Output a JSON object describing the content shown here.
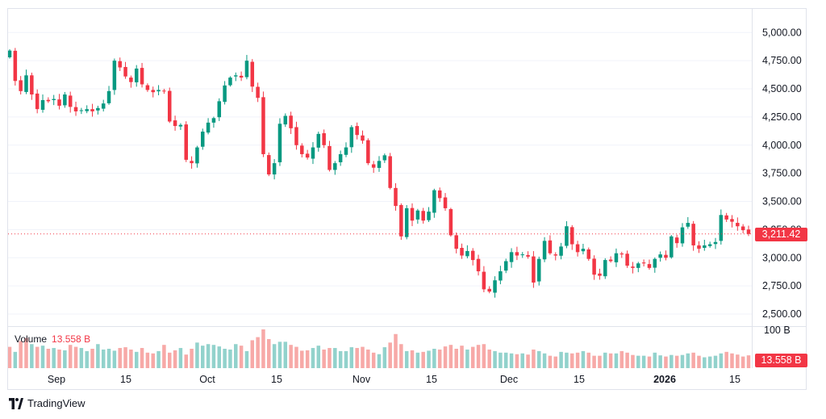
{
  "chart_data": {
    "type": "candlestick",
    "y_axis": {
      "ticks": [
        "5,000.00",
        "4,750.00",
        "4,500.00",
        "4,250.00",
        "4,000.00",
        "3,750.00",
        "3,500.00",
        "3,250.00",
        "3,000.00",
        "2,750.00",
        "2,500.00"
      ],
      "tick_values": [
        5000,
        4750,
        4500,
        4250,
        4000,
        3750,
        3500,
        3250,
        3000,
        2750,
        2500
      ],
      "range": [
        2400,
        5210
      ]
    },
    "x_axis": {
      "ticks": [
        "Sep",
        "15",
        "Oct",
        "15",
        "Nov",
        "15",
        "Dec",
        "15",
        "2026",
        "15"
      ],
      "bold_ticks": [
        "2026"
      ]
    },
    "last_price": 3211.42,
    "last_price_label": "3,211.42",
    "closes": [
      4840,
      4570,
      4480,
      4620,
      4450,
      4320,
      4400,
      4390,
      4410,
      4350,
      4450,
      4340,
      4300,
      4310,
      4320,
      4300,
      4330,
      4370,
      4480,
      4750,
      4690,
      4610,
      4560,
      4680,
      4540,
      4490,
      4470,
      4490,
      4480,
      4210,
      4170,
      4180,
      3870,
      3840,
      3980,
      4120,
      4200,
      4240,
      4390,
      4530,
      4600,
      4620,
      4600,
      4750,
      4520,
      4420,
      3920,
      3740,
      3840,
      4190,
      4260,
      4150,
      4000,
      3920,
      3890,
      3980,
      4100,
      4000,
      3780,
      3840,
      3920,
      3980,
      4160,
      4090,
      4040,
      3840,
      3800,
      3860,
      3910,
      3620,
      3460,
      3190,
      3440,
      3330,
      3420,
      3330,
      3410,
      3600,
      3530,
      3440,
      3200,
      3080,
      3020,
      3060,
      2980,
      2880,
      2720,
      2700,
      2800,
      2880,
      2970,
      3050,
      3020,
      3030,
      3010,
      2780,
      2990,
      3150,
      3040,
      3020,
      3100,
      3280,
      3120,
      3050,
      3080,
      2990,
      2850,
      2840,
      2980,
      2970,
      3040,
      3030,
      2930,
      2910,
      2950,
      2950,
      2910,
      2990,
      3030,
      3000,
      3190,
      3130,
      3270,
      3310,
      3110,
      3080,
      3110,
      3120,
      3140,
      3380,
      3340,
      3320,
      3280,
      3245,
      3211.42
    ],
    "volume": {
      "label": "Volume",
      "last_label": "13.558 B",
      "axis_label": "100 B",
      "values": [
        55,
        42,
        70,
        78,
        62,
        55,
        58,
        50,
        52,
        48,
        46,
        60,
        55,
        52,
        44,
        50,
        62,
        48,
        50,
        45,
        52,
        54,
        48,
        42,
        52,
        40,
        38,
        44,
        60,
        40,
        46,
        52,
        35,
        50,
        66,
        58,
        62,
        60,
        56,
        50,
        48,
        62,
        58,
        44,
        72,
        80,
        100,
        75,
        62,
        68,
        68,
        60,
        55,
        45,
        46,
        52,
        58,
        48,
        52,
        52,
        44,
        44,
        54,
        52,
        55,
        48,
        40,
        36,
        54,
        66,
        88,
        62,
        44,
        46,
        40,
        42,
        45,
        50,
        48,
        56,
        60,
        50,
        58,
        48,
        55,
        60,
        62,
        48,
        44,
        40,
        40,
        38,
        36,
        38,
        35,
        48,
        44,
        38,
        32,
        30,
        42,
        40,
        38,
        40,
        44,
        40,
        32,
        32,
        40,
        38,
        38,
        44,
        40,
        34,
        32,
        32,
        30,
        40,
        33,
        30,
        34,
        32,
        34,
        38,
        40,
        32,
        28,
        30,
        32,
        38,
        42,
        38,
        35,
        30,
        33
      ],
      "colors": [
        "down",
        "up",
        "down",
        "down",
        "up",
        "down",
        "up",
        "down",
        "up",
        "down",
        "up",
        "down",
        "down",
        "up",
        "up",
        "down",
        "up",
        "up",
        "up",
        "up",
        "down",
        "down",
        "down",
        "up",
        "down",
        "down",
        "down",
        "up",
        "down",
        "down",
        "down",
        "up",
        "down",
        "down",
        "up",
        "up",
        "up",
        "up",
        "up",
        "up",
        "up",
        "up",
        "down",
        "up",
        "down",
        "down",
        "down",
        "down",
        "up",
        "up",
        "up",
        "down",
        "down",
        "down",
        "down",
        "up",
        "up",
        "down",
        "down",
        "up",
        "up",
        "up",
        "up",
        "down",
        "down",
        "down",
        "down",
        "up",
        "up",
        "down",
        "down",
        "down",
        "up",
        "down",
        "up",
        "down",
        "up",
        "up",
        "down",
        "down",
        "down",
        "down",
        "down",
        "up",
        "down",
        "down",
        "down",
        "down",
        "up",
        "up",
        "up",
        "up",
        "down",
        "up",
        "down",
        "down",
        "up",
        "up",
        "down",
        "down",
        "up",
        "up",
        "down",
        "down",
        "up",
        "down",
        "down",
        "down",
        "up",
        "down",
        "up",
        "down",
        "down",
        "down",
        "up",
        "up",
        "down",
        "up",
        "up",
        "down",
        "up",
        "down",
        "up",
        "up",
        "down",
        "down",
        "up",
        "up",
        "up",
        "up",
        "down",
        "down",
        "down",
        "down",
        "down"
      ]
    },
    "colors": {
      "up": "#089981",
      "down": "#f23645",
      "up_volume": "#92d2cc",
      "down_volume": "#f7a9a7",
      "grid": "#f0f3fa",
      "axis_text": "#131722"
    }
  },
  "ui": {
    "volume_label": "Volume",
    "volume_value": "13.558 B",
    "price_tag": "3,211.42",
    "volume_tag": "13.558 B",
    "volume_axis_label": "100 B",
    "brand": "TradingView"
  }
}
